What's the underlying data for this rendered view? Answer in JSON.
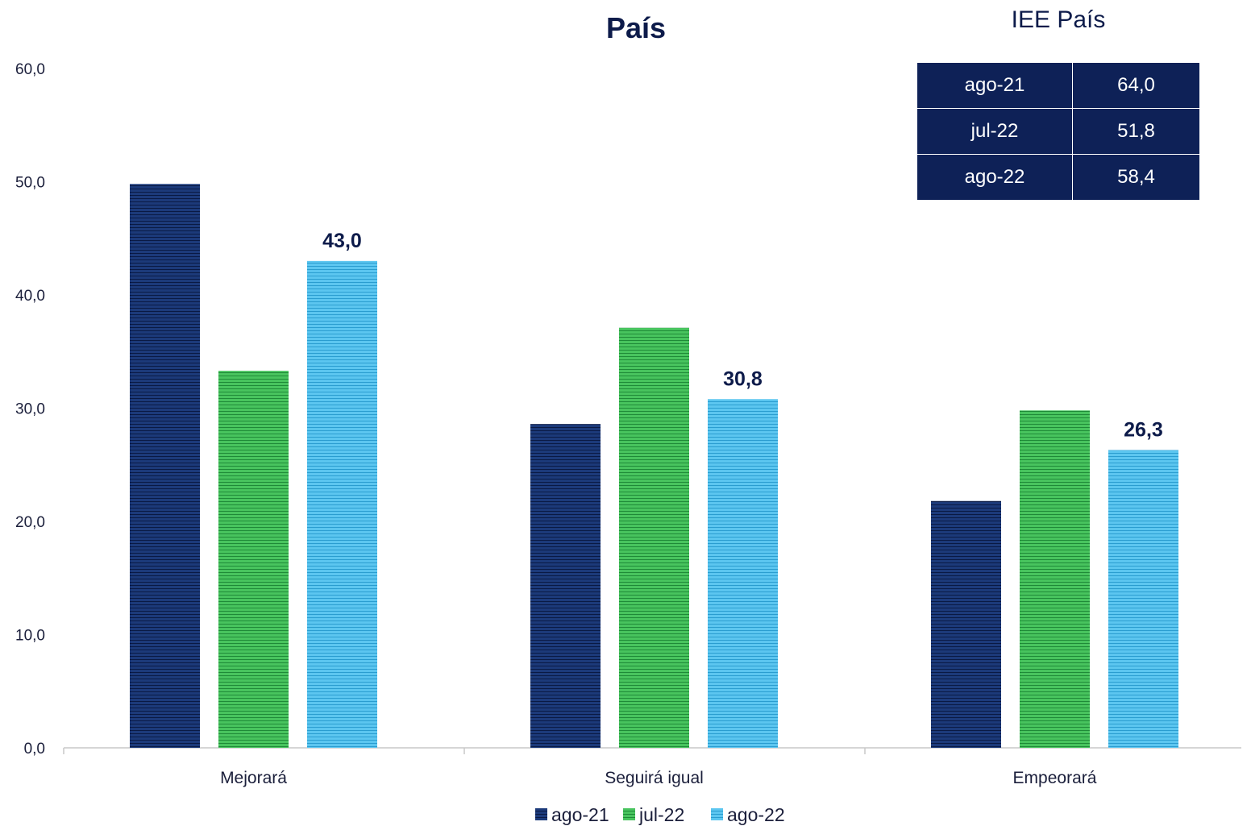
{
  "chart_data": {
    "type": "bar",
    "title": "País",
    "categories": [
      "Mejorará",
      "Seguirá igual",
      "Empeorará"
    ],
    "series": [
      {
        "name": "ago-21",
        "values": [
          49.8,
          28.6,
          21.8
        ],
        "color": "#1c3a7a",
        "show_labels": false
      },
      {
        "name": "jul-22",
        "values": [
          33.3,
          37.1,
          29.8
        ],
        "color": "#3aaf4f",
        "show_labels": false
      },
      {
        "name": "ago-22",
        "values": [
          43.0,
          30.8,
          26.3
        ],
        "color": "#3fb3e3",
        "show_labels": true
      }
    ],
    "data_labels": [
      "43,0",
      "30,8",
      "26,3"
    ],
    "ylim": [
      0,
      60
    ],
    "yticks": [
      "0,0",
      "10,0",
      "20,0",
      "30,0",
      "40,0",
      "50,0",
      "60,0"
    ],
    "grid": false,
    "legend_position": "bottom"
  },
  "iee_table": {
    "title": "IEE País",
    "rows": [
      {
        "period": "ago-21",
        "value": "64,0"
      },
      {
        "period": "jul-22",
        "value": "51,8"
      },
      {
        "period": "ago-22",
        "value": "58,4"
      }
    ]
  }
}
